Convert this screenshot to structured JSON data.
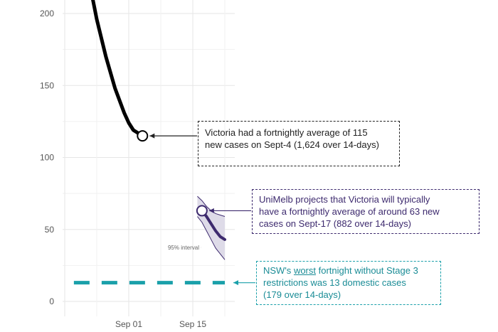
{
  "chart_data": {
    "type": "line",
    "xlabel": "",
    "ylabel": "",
    "ylim": [
      -5,
      205
    ],
    "y_ticks": [
      0,
      50,
      100,
      150,
      200
    ],
    "x_ticks": [
      {
        "date": "2020-09-01",
        "label": "Sep 01"
      },
      {
        "date": "2020-09-15",
        "label": "Sep 15"
      }
    ],
    "series": [
      {
        "name": "",
        "color": "#000000",
        "points": [
          {
            "x": "2020-08-24",
            "y": 212
          },
          {
            "x": "2020-08-25",
            "y": 196
          },
          {
            "x": "2020-08-27",
            "y": 170
          },
          {
            "x": "2020-08-29",
            "y": 148
          },
          {
            "x": "2020-08-31",
            "y": 131
          },
          {
            "x": "2020-09-01",
            "y": 124
          },
          {
            "x": "2020-09-02",
            "y": 119
          },
          {
            "x": "2020-09-04",
            "y": 115
          }
        ]
      },
      {
        "name": "",
        "color": "#3d2a6e",
        "points": [
          {
            "x": "2020-09-17",
            "y": 63
          },
          {
            "x": "2020-09-18",
            "y": 59
          },
          {
            "x": "2020-09-19",
            "y": 54
          },
          {
            "x": "2020-09-20",
            "y": 49
          },
          {
            "x": "2020-09-21",
            "y": 45
          },
          {
            "x": "2020-09-22",
            "y": 43
          }
        ],
        "interval_label": "95% interval",
        "interval": [
          {
            "x": "2020-09-16",
            "lo": 59,
            "hi": 73
          },
          {
            "x": "2020-09-17",
            "lo": 55,
            "hi": 70
          },
          {
            "x": "2020-09-18",
            "lo": 49,
            "hi": 66
          },
          {
            "x": "2020-09-19",
            "lo": 43,
            "hi": 63
          },
          {
            "x": "2020-09-20",
            "lo": 37,
            "hi": 61
          },
          {
            "x": "2020-09-21",
            "lo": 33,
            "hi": 60
          },
          {
            "x": "2020-09-22",
            "lo": 29,
            "hi": 59
          }
        ]
      }
    ],
    "reference_line": {
      "y": 13,
      "color": "#1aa0aa",
      "x_start": "2020-08-20",
      "x_end": "2020-09-22"
    },
    "highlight_points": [
      {
        "x": "2020-09-04",
        "y": 115,
        "color": "#000000"
      },
      {
        "x": "2020-09-17",
        "y": 63,
        "color": "#3d2a6e"
      }
    ]
  },
  "annotations": {
    "victoria": {
      "line1": "Victoria had a fortnightly average of 115",
      "line2": "new cases on Sept-4 (1,624 over 14-days)"
    },
    "unimelb": {
      "line1": "UniMelb projects that Victoria will typically",
      "line2": "have a fortnightly average of around 63 new",
      "line3": "cases on Sept-17 (882 over 14-days)"
    },
    "nsw": {
      "prefix": "NSW's ",
      "emph": "worst",
      "suffix": " fortnight without Stage 3",
      "line2": "restrictions was 13 domestic cases",
      "line3": "(179 over 14-days)"
    }
  }
}
